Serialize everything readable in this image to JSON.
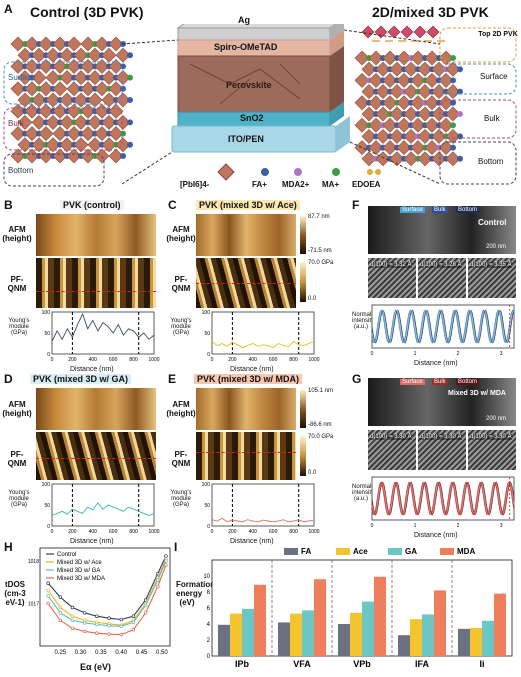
{
  "panelA": {
    "letter": "A",
    "control_title": "Control (3D PVK)",
    "mixed_title": "2D/mixed 3D PVK",
    "left_regions": [
      "Surface",
      "Bulk",
      "Bottom"
    ],
    "right_regions": [
      "Top 2D PVK",
      "Surface",
      "Bulk",
      "Bottom"
    ],
    "layers": [
      "Ag",
      "Spiro-OMeTAD",
      "Perovskite",
      "SnO2",
      "ITO/PEN"
    ],
    "legend": [
      "[PbI6]4-",
      "FA+",
      "MDA2+",
      "MA+",
      "EDOEA"
    ],
    "colors": {
      "octahedron": "#c0765c",
      "FA": "#3d5fa8",
      "MDA": "#a779c4",
      "MA": "#3f9b4a",
      "EDOEA": "#e3a93a",
      "perovskite": "#9a6a5a",
      "sno2": "#4fb3c9",
      "ito": "#a8d8e8"
    }
  },
  "panelB": {
    "letter": "B",
    "title": "PVK (control)",
    "afm_label": "AFM (height)",
    "qnm_label": "PF-QNM",
    "ylabel": "Young's module (GPa)",
    "xlabel": "Distance (nm)"
  },
  "panelC": {
    "letter": "C",
    "title": "PVK (mixed 3D w/ Ace)",
    "afm_label": "AFM (height)",
    "qnm_label": "PF-QNM",
    "ylabel": "Young's module (GPa)",
    "xlabel": "Distance (nm)",
    "cbar_afm": [
      "87.7 nm",
      "-71.5 nm"
    ],
    "cbar_qnm": [
      "70.0 GPa",
      "0.0"
    ]
  },
  "panelD": {
    "letter": "D",
    "title": "PVK (mixed 3D w/ GA)",
    "afm_label": "AFM (height)",
    "qnm_label": "PF-QNM",
    "ylabel": "Young's module (GPa)",
    "xlabel": "Distance (nm)"
  },
  "panelE": {
    "letter": "E",
    "title": "PVK (mixed 3D w/ MDA)",
    "afm_label": "AFM (height)",
    "qnm_label": "PF-QNM",
    "ylabel": "Young's module (GPa)",
    "xlabel": "Distance (nm)",
    "cbar_afm": [
      "105.1 nm",
      "-86.6 nm"
    ],
    "cbar_qnm": [
      "70.0 GPa",
      "0.0"
    ]
  },
  "panelF": {
    "letter": "F",
    "strip": [
      "Surface",
      "Bulk",
      "Bottom"
    ],
    "tag": "Control",
    "scale": "200 nm",
    "dspacing": [
      "d(100) = 3.32 Å",
      "d(100) = 3.28 Å",
      "d(100) = 3.35 Å"
    ],
    "ylabel": "Normalized intensity (a.u.)",
    "xlabel": "Distance (nm)"
  },
  "panelG": {
    "letter": "G",
    "strip": [
      "Surface",
      "Bulk",
      "Bottom"
    ],
    "tag": "Mixed 3D w/ MDA",
    "scale": "200 nm",
    "dspacing": [
      "d(100) = 3.30 Å",
      "d(100) = 3.30 Å",
      "d(100) = 3.30 Å"
    ],
    "ylabel": "Normalized intensity (a.u.)",
    "xlabel": "Distance (nm)"
  },
  "panelH": {
    "letter": "H",
    "ylabel": "tDOS (cm-3 eV-1)",
    "xlabel": "Eα (eV)"
  },
  "panelI": {
    "letter": "I",
    "ylabel": "Formation energy (eV)"
  },
  "chart_data": [
    {
      "type": "line",
      "id": "B",
      "xlabel": "Distance (nm)",
      "ylabel": "Young's module (GPa)",
      "xlim": [
        0,
        1000
      ],
      "ylim": [
        0,
        100
      ],
      "xticks": [
        0,
        200,
        400,
        600,
        800,
        1000
      ],
      "yticks": [
        0,
        50,
        100
      ],
      "vlines": [
        200,
        850
      ],
      "series": [
        {
          "color": "#3b4a6b",
          "x": [
            0,
            50,
            100,
            150,
            200,
            250,
            300,
            350,
            400,
            450,
            500,
            550,
            600,
            650,
            700,
            750,
            800,
            850,
            900,
            950,
            1000
          ],
          "y": [
            30,
            55,
            35,
            60,
            40,
            70,
            95,
            60,
            80,
            55,
            75,
            65,
            50,
            70,
            45,
            60,
            55,
            40,
            50,
            35,
            45
          ]
        }
      ]
    },
    {
      "type": "line",
      "id": "C",
      "xlabel": "Distance (nm)",
      "ylabel": "Young's module (GPa)",
      "xlim": [
        0,
        1000
      ],
      "ylim": [
        0,
        100
      ],
      "xticks": [
        0,
        200,
        400,
        600,
        800,
        1000
      ],
      "yticks": [
        0,
        50,
        100
      ],
      "vlines": [
        200,
        850
      ],
      "series": [
        {
          "color": "#e2c21c",
          "x": [
            0,
            50,
            100,
            150,
            200,
            250,
            300,
            350,
            400,
            450,
            500,
            550,
            600,
            650,
            700,
            750,
            800,
            850,
            900,
            950,
            1000
          ],
          "y": [
            30,
            20,
            25,
            18,
            28,
            22,
            15,
            20,
            25,
            18,
            22,
            20,
            15,
            25,
            20,
            18,
            30,
            22,
            20,
            25,
            30
          ]
        }
      ]
    },
    {
      "type": "line",
      "id": "D",
      "xlabel": "Distance (nm)",
      "ylabel": "Young's module (GPa)",
      "xlim": [
        0,
        1000
      ],
      "ylim": [
        0,
        100
      ],
      "xticks": [
        0,
        200,
        400,
        600,
        800,
        1000
      ],
      "yticks": [
        0,
        50,
        100
      ],
      "vlines": [
        200,
        850
      ],
      "series": [
        {
          "color": "#3bbab5",
          "x": [
            0,
            50,
            100,
            150,
            200,
            250,
            300,
            350,
            400,
            450,
            500,
            550,
            600,
            650,
            700,
            750,
            800,
            850,
            900,
            950,
            1000
          ],
          "y": [
            25,
            30,
            35,
            28,
            40,
            35,
            30,
            45,
            38,
            55,
            40,
            50,
            45,
            40,
            35,
            45,
            40,
            35,
            30,
            25,
            30
          ]
        }
      ]
    },
    {
      "type": "line",
      "id": "E",
      "xlabel": "Distance (nm)",
      "ylabel": "Young's module (GPa)",
      "xlim": [
        0,
        1000
      ],
      "ylim": [
        0,
        100
      ],
      "xticks": [
        0,
        200,
        400,
        600,
        800,
        1000
      ],
      "yticks": [
        0,
        50,
        100
      ],
      "vlines": [
        200,
        850
      ],
      "series": [
        {
          "color": "#e3735a",
          "x": [
            0,
            50,
            100,
            150,
            200,
            250,
            300,
            350,
            400,
            450,
            500,
            550,
            600,
            650,
            700,
            750,
            800,
            850,
            900,
            950,
            1000
          ],
          "y": [
            15,
            12,
            18,
            10,
            14,
            12,
            10,
            15,
            12,
            10,
            14,
            12,
            10,
            12,
            15,
            10,
            12,
            15,
            10,
            12,
            14
          ]
        }
      ]
    },
    {
      "type": "line",
      "id": "F",
      "xlabel": "Distance (nm)",
      "ylabel": "Normalized intensity (a.u.)",
      "xlim": [
        0,
        3.3
      ],
      "xticks": [
        0,
        1,
        2,
        3
      ],
      "series": [
        {
          "color": "#2b3d6b"
        },
        {
          "color": "#6fb7d9"
        },
        {
          "color": "#4e7fb8"
        }
      ]
    },
    {
      "type": "line",
      "id": "G",
      "xlabel": "Distance (nm)",
      "ylabel": "Normalized intensity (a.u.)",
      "xlim": [
        0,
        3.3
      ],
      "xticks": [
        0,
        1,
        2,
        3
      ],
      "series": [
        {
          "color": "#8a1f1f"
        },
        {
          "color": "#d06a6a"
        },
        {
          "color": "#b03a3a"
        }
      ]
    },
    {
      "type": "line",
      "id": "H",
      "xlabel": "Eα (eV)",
      "ylabel": "tDOS (cm-3 eV-1)",
      "xlim": [
        0.2,
        0.52
      ],
      "xticks": [
        0.25,
        0.3,
        0.35,
        0.4,
        0.45,
        0.5
      ],
      "yscale": "log",
      "ylim": [
        1e+16,
        2e+18
      ],
      "yticks_labels": [
        "10^17",
        "10^18"
      ],
      "series": [
        {
          "name": "Control",
          "color": "#333a55",
          "x": [
            0.22,
            0.25,
            0.28,
            0.31,
            0.34,
            0.37,
            0.4,
            0.43,
            0.46,
            0.49,
            0.51
          ],
          "y": [
            3e+17,
            1.4e+17,
            8e+16,
            6e+16,
            5e+16,
            4.5e+16,
            4.2e+16,
            5e+16,
            1.2e+17,
            5e+17,
            1.3e+18
          ]
        },
        {
          "name": "Mixed 3D w/ Ace",
          "color": "#f0b429",
          "x": [
            0.22,
            0.25,
            0.28,
            0.31,
            0.34,
            0.37,
            0.4,
            0.43,
            0.46,
            0.49,
            0.51
          ],
          "y": [
            2e+17,
            8e+16,
            5e+16,
            4e+16,
            3.6e+16,
            3.3e+16,
            3.1e+16,
            4e+16,
            1e+17,
            4e+17,
            1.1e+18
          ]
        },
        {
          "name": "Mixed 3D w/ GA",
          "color": "#5bbec0",
          "x": [
            0.22,
            0.25,
            0.28,
            0.31,
            0.34,
            0.37,
            0.4,
            0.43,
            0.46,
            0.49,
            0.51
          ],
          "y": [
            1.5e+17,
            6e+16,
            4e+16,
            3.5e+16,
            3.2e+16,
            3e+16,
            2.9e+16,
            3.6e+16,
            9e+16,
            3.5e+17,
            1e+18
          ]
        },
        {
          "name": "Mixed 3D w/ MDA",
          "color": "#e46a4e",
          "x": [
            0.22,
            0.25,
            0.28,
            0.31,
            0.34,
            0.37,
            0.4,
            0.43,
            0.46,
            0.49,
            0.51
          ],
          "y": [
            1e+17,
            4e+16,
            2.6e+16,
            2.2e+16,
            2e+16,
            1.9e+16,
            1.85e+16,
            2.4e+16,
            6e+16,
            2.5e+17,
            8e+17
          ]
        }
      ],
      "legend": "top-left"
    },
    {
      "type": "bar",
      "id": "I",
      "ylabel": "Formation energy (eV)",
      "ylim": [
        0,
        12
      ],
      "yticks": [
        0,
        2,
        4,
        6,
        8,
        10
      ],
      "categories": [
        "IPb",
        "VFA",
        "VPb",
        "IFA",
        "Ii"
      ],
      "series": [
        {
          "name": "FA",
          "color": "#6b7180",
          "values": [
            3.9,
            4.2,
            4.0,
            2.6,
            3.4
          ]
        },
        {
          "name": "Ace",
          "color": "#f4c430",
          "values": [
            5.3,
            5.3,
            5.4,
            4.6,
            3.5
          ]
        },
        {
          "name": "GA",
          "color": "#6cc7c4",
          "values": [
            5.9,
            5.7,
            6.8,
            5.2,
            4.4
          ]
        },
        {
          "name": "MDA",
          "color": "#ef7e5c",
          "values": [
            8.9,
            9.6,
            9.9,
            8.2,
            7.8
          ]
        }
      ],
      "legend": "top"
    }
  ]
}
